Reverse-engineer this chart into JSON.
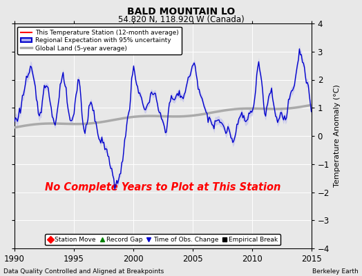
{
  "title": "BALD MOUNTAIN LO",
  "subtitle": "54.820 N, 118.920 W (Canada)",
  "xlabel_left": "Data Quality Controlled and Aligned at Breakpoints",
  "xlabel_right": "Berkeley Earth",
  "ylabel": "Temperature Anomaly (°C)",
  "xlim": [
    1990,
    2015
  ],
  "ylim": [
    -4,
    4
  ],
  "yticks": [
    -4,
    -3,
    -2,
    -1,
    0,
    1,
    2,
    3,
    4
  ],
  "xticks": [
    1990,
    1995,
    2000,
    2005,
    2010,
    2015
  ],
  "annotation": "No Complete Years to Plot at This Station",
  "annotation_color": "#ff0000",
  "bg_color": "#e8e8e8",
  "grid_color": "#ffffff",
  "regional_color": "#0000cc",
  "regional_band_color": "#aaaaee",
  "global_color": "#aaaaaa",
  "legend_items": [
    {
      "label": "This Temperature Station (12-month average)",
      "color": "red",
      "lw": 1.5
    },
    {
      "label": "Regional Expectation with 95% uncertainty",
      "color": "#0000cc",
      "lw": 1.5
    },
    {
      "label": "Global Land (5-year average)",
      "color": "#aaaaaa",
      "lw": 3
    }
  ],
  "bottom_legend": [
    {
      "label": "Station Move",
      "marker": "D",
      "color": "red"
    },
    {
      "label": "Record Gap",
      "marker": "^",
      "color": "green"
    },
    {
      "label": "Time of Obs. Change",
      "marker": "v",
      "color": "#0000cc"
    },
    {
      "label": "Empirical Break",
      "marker": "s",
      "color": "black"
    }
  ]
}
